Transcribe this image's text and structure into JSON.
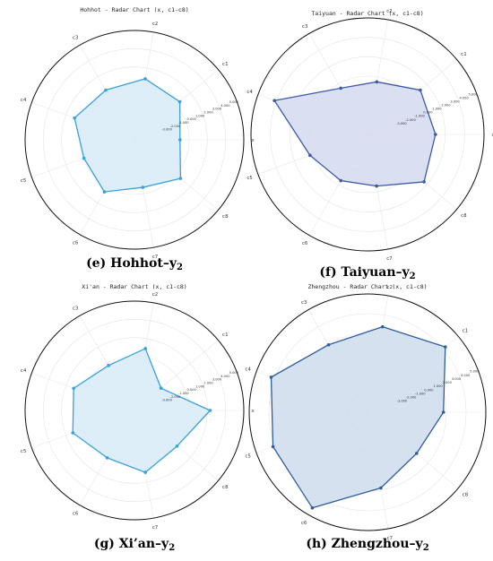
{
  "chart_data": [
    {
      "type": "radar",
      "title": "Hohhot - Radar Chart (x, c1-c8)",
      "caption": {
        "main": "(e) Hohhot–y",
        "sub": "2"
      },
      "color": "#3aa0dc",
      "fill": "#d7ebf8",
      "categories": [
        "x",
        "c1",
        "c2",
        "c3",
        "c4",
        "c5",
        "c6",
        "c7",
        "c8"
      ],
      "values": [
        -1.0,
        0.5,
        0.8,
        0.3,
        1.0,
        -0.1,
        0.6,
        -0.7,
        0.6
      ],
      "rlim": [
        -6,
        6
      ],
      "tick_values": [
        5,
        4,
        3,
        2,
        1,
        0,
        -1,
        -2,
        -3
      ],
      "tick_labels": [
        "5.000",
        "4.000",
        "3.000",
        "2.000",
        "1.000",
        "0.000",
        "-1.000",
        "-2.000",
        "-3.000"
      ]
    },
    {
      "type": "radar",
      "title": "Taiyuan - Radar Chart (x, c1-c8)",
      "caption": {
        "main": "(f) Taiyuan–y",
        "sub": "2"
      },
      "color": "#3d5aa8",
      "fill": "#d3d9ee",
      "categories": [
        "x",
        "c1",
        "c2",
        "c3",
        "c4",
        "c5",
        "c6",
        "c7",
        "c8"
      ],
      "values": [
        1.0,
        1.1,
        -0.5,
        -0.5,
        4.2,
        0.3,
        -0.5,
        -0.6,
        1.6
      ],
      "rlim": [
        -6,
        6
      ],
      "tick_values": [
        5,
        4,
        3,
        2,
        1,
        0,
        -1,
        -2,
        -3
      ],
      "tick_labels": [
        "5.000",
        "4.000",
        "3.000",
        "2.000",
        "1.000",
        "0.000",
        "-1.000",
        "-2.000",
        "-3.000"
      ]
    },
    {
      "type": "radar",
      "title": "Xi'an - Radar Chart (x, c1-c8)",
      "caption": {
        "main": "(g) Xi’an–y",
        "sub": "2"
      },
      "color": "#3aa0dc",
      "fill": "#d7ebf8",
      "categories": [
        "x",
        "c1",
        "c2",
        "c3",
        "c4",
        "c5",
        "c6",
        "c7",
        "c8"
      ],
      "values": [
        2.3,
        -2.2,
        0.9,
        -0.3,
        1.1,
        1.2,
        0.0,
        0.9,
        0.1
      ],
      "rlim": [
        -6,
        6
      ],
      "tick_values": [
        5,
        4,
        3,
        2,
        1,
        0,
        -1,
        -2,
        -3
      ],
      "tick_labels": [
        "5.000",
        "4.000",
        "3.000",
        "2.000",
        "1.000",
        "0.000",
        "-1.000",
        "-2.000",
        "-3.000"
      ]
    },
    {
      "type": "radar",
      "title": "Zhengzhou - Radar Chart (x, c1-c8)",
      "caption": {
        "main": "(h) Zhengzhou–y",
        "sub": "2"
      },
      "color": "#2f5d9c",
      "fill": "#cfdced",
      "categories": [
        "x",
        "c1",
        "c2",
        "c3",
        "c4",
        "c5",
        "c6",
        "c7",
        "c8"
      ],
      "values": [
        1.7,
        4.3,
        2.8,
        1.9,
        4.4,
        4.2,
        5.2,
        1.8,
        0.5
      ],
      "rlim": [
        -6,
        6
      ],
      "tick_values": [
        5,
        4,
        3,
        2,
        1,
        0,
        -1,
        -2,
        -3
      ],
      "tick_labels": [
        "5.000",
        "4.000",
        "3.000",
        "2.000",
        "1.000",
        "0.000",
        "-1.000",
        "-2.000",
        "-3.000"
      ]
    }
  ]
}
